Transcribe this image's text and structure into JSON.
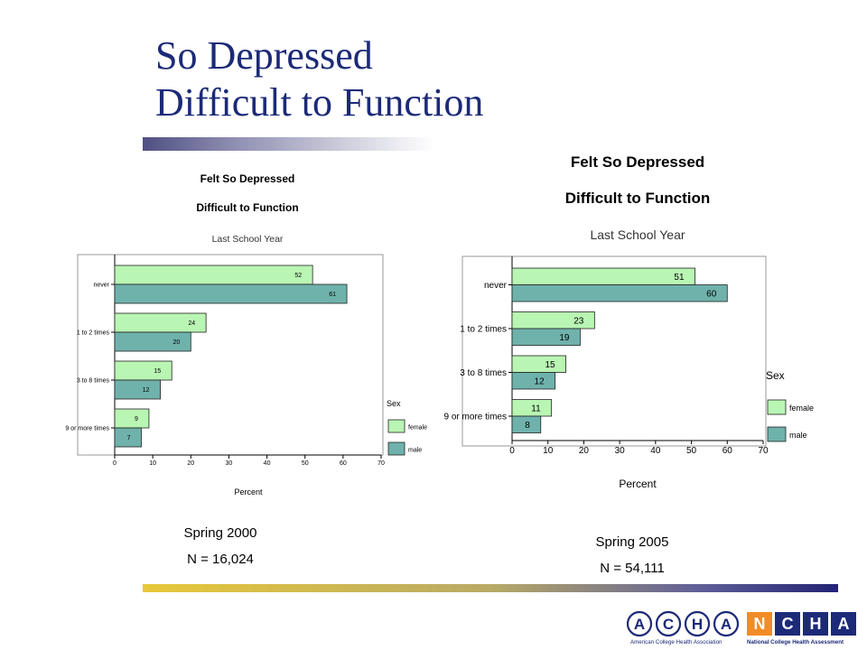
{
  "slide": {
    "title_line1": "So Depressed",
    "title_line2": "Difficult to Function",
    "colors": {
      "title": "#1c2a78",
      "female": "#b9f5b3",
      "male": "#6fb2ac"
    }
  },
  "chart_data": [
    {
      "type": "bar",
      "orientation": "horizontal",
      "title": "Felt So Depressed",
      "subtitle": "Difficult to Function",
      "subtitle2": "Last School Year",
      "categories": [
        "never",
        "1 to 2 times",
        "3 to 8 times",
        "9 or more times"
      ],
      "series": [
        {
          "name": "female",
          "values": [
            52,
            24,
            15,
            9
          ]
        },
        {
          "name": "male",
          "values": [
            61,
            20,
            12,
            7
          ]
        }
      ],
      "xlabel": "Percent",
      "xlim": [
        0,
        70
      ],
      "xticks": [
        0,
        10,
        20,
        30,
        40,
        50,
        60,
        70
      ],
      "legend_title": "Sex",
      "legend_position": "right",
      "grid": false,
      "caption_line1": "Spring 2000",
      "caption_line2": "N = 16,024"
    },
    {
      "type": "bar",
      "orientation": "horizontal",
      "title": "Felt So Depressed",
      "subtitle": "Difficult to Function",
      "subtitle2": "Last School Year",
      "categories": [
        "never",
        "1 to 2 times",
        "3 to 8 times",
        "9 or more times"
      ],
      "series": [
        {
          "name": "female",
          "values": [
            51,
            23,
            15,
            11
          ]
        },
        {
          "name": "male",
          "values": [
            60,
            19,
            12,
            8
          ]
        }
      ],
      "xlabel": "Percent",
      "xlim": [
        0,
        70
      ],
      "xticks": [
        0,
        10,
        20,
        30,
        40,
        50,
        60,
        70
      ],
      "legend_title": "Sex",
      "legend_position": "right",
      "grid": false,
      "caption_line1": "Spring 2005",
      "caption_line2": "N = 54,111"
    }
  ],
  "footer": {
    "logo_left_letters": [
      "A",
      "C",
      "H",
      "A"
    ],
    "logo_right_letters": [
      "N",
      "C",
      "H",
      "A"
    ],
    "logo_left_caption": "American College Health Association",
    "logo_right_caption": "National College Health Assessment"
  }
}
